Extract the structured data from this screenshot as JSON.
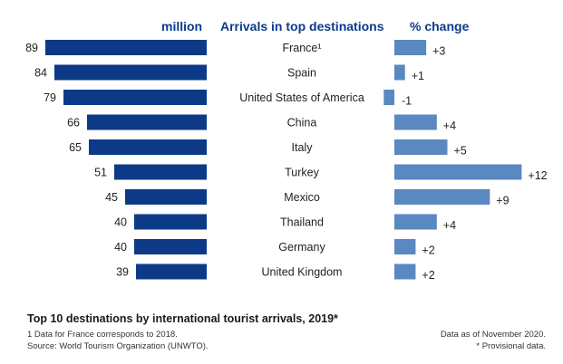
{
  "headers": {
    "million": "million",
    "arrivals": "Arrivals in top destinations",
    "change": "% change"
  },
  "colors": {
    "arrivals_bar": "#0c3a86",
    "change_bar": "#5a88c0",
    "header_text": "#0a3b8c"
  },
  "chart_data": {
    "type": "bar",
    "categories": [
      "France¹",
      "Spain",
      "United States of America",
      "China",
      "Italy",
      "Turkey",
      "Mexico",
      "Thailand",
      "Germany",
      "United Kingdom"
    ],
    "series": [
      {
        "name": "million",
        "values": [
          89,
          84,
          79,
          66,
          65,
          51,
          45,
          40,
          40,
          39
        ]
      },
      {
        "name": "% change",
        "values": [
          3,
          1,
          -1,
          4,
          5,
          12,
          9,
          4,
          2,
          2
        ],
        "labels": [
          "+3",
          "+1",
          "-1",
          "+4",
          "+5",
          "+12",
          "+9",
          "+4",
          "+2",
          "+2"
        ]
      }
    ],
    "title": "Top 10 destinations by international tourist arrivals, 2019*"
  },
  "footnotes": {
    "note1": "1   Data for France corresponds to 2018.",
    "source": "Source: World Tourism Organization (UNWTO).",
    "data_as_of": "Data as of November 2020.",
    "provisional": "* Provisional data."
  }
}
